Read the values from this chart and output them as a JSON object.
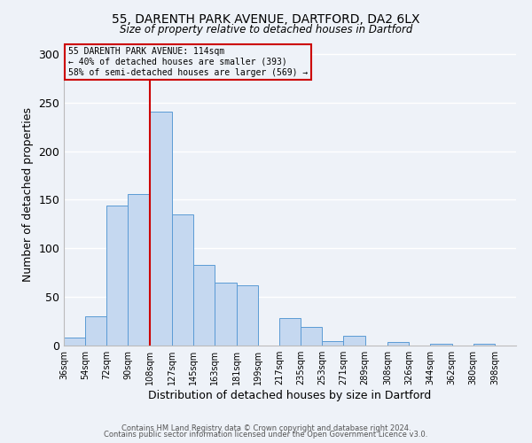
{
  "title1": "55, DARENTH PARK AVENUE, DARTFORD, DA2 6LX",
  "title2": "Size of property relative to detached houses in Dartford",
  "xlabel": "Distribution of detached houses by size in Dartford",
  "ylabel": "Number of detached properties",
  "bar_color": "#c5d8f0",
  "bar_edge_color": "#5b9bd5",
  "vline_color": "#cc0000",
  "vline_x": 108,
  "categories": [
    "36sqm",
    "54sqm",
    "72sqm",
    "90sqm",
    "108sqm",
    "127sqm",
    "145sqm",
    "163sqm",
    "181sqm",
    "199sqm",
    "217sqm",
    "235sqm",
    "253sqm",
    "271sqm",
    "289sqm",
    "308sqm",
    "326sqm",
    "344sqm",
    "362sqm",
    "380sqm",
    "398sqm"
  ],
  "bin_edges": [
    36,
    54,
    72,
    90,
    108,
    127,
    145,
    163,
    181,
    199,
    217,
    235,
    253,
    271,
    289,
    308,
    326,
    344,
    362,
    380,
    398,
    416
  ],
  "values": [
    8,
    30,
    144,
    156,
    241,
    135,
    83,
    65,
    62,
    0,
    28,
    19,
    5,
    10,
    0,
    4,
    0,
    2,
    0,
    2,
    0
  ],
  "ylim": [
    0,
    310
  ],
  "yticks": [
    0,
    50,
    100,
    150,
    200,
    250,
    300
  ],
  "annotation_line1": "55 DARENTH PARK AVENUE: 114sqm",
  "annotation_line2": "← 40% of detached houses are smaller (393)",
  "annotation_line3": "58% of semi-detached houses are larger (569) →",
  "footer1": "Contains HM Land Registry data © Crown copyright and database right 2024.",
  "footer2": "Contains public sector information licensed under the Open Government Licence v3.0.",
  "background_color": "#eef2f8",
  "grid_color": "#ffffff"
}
